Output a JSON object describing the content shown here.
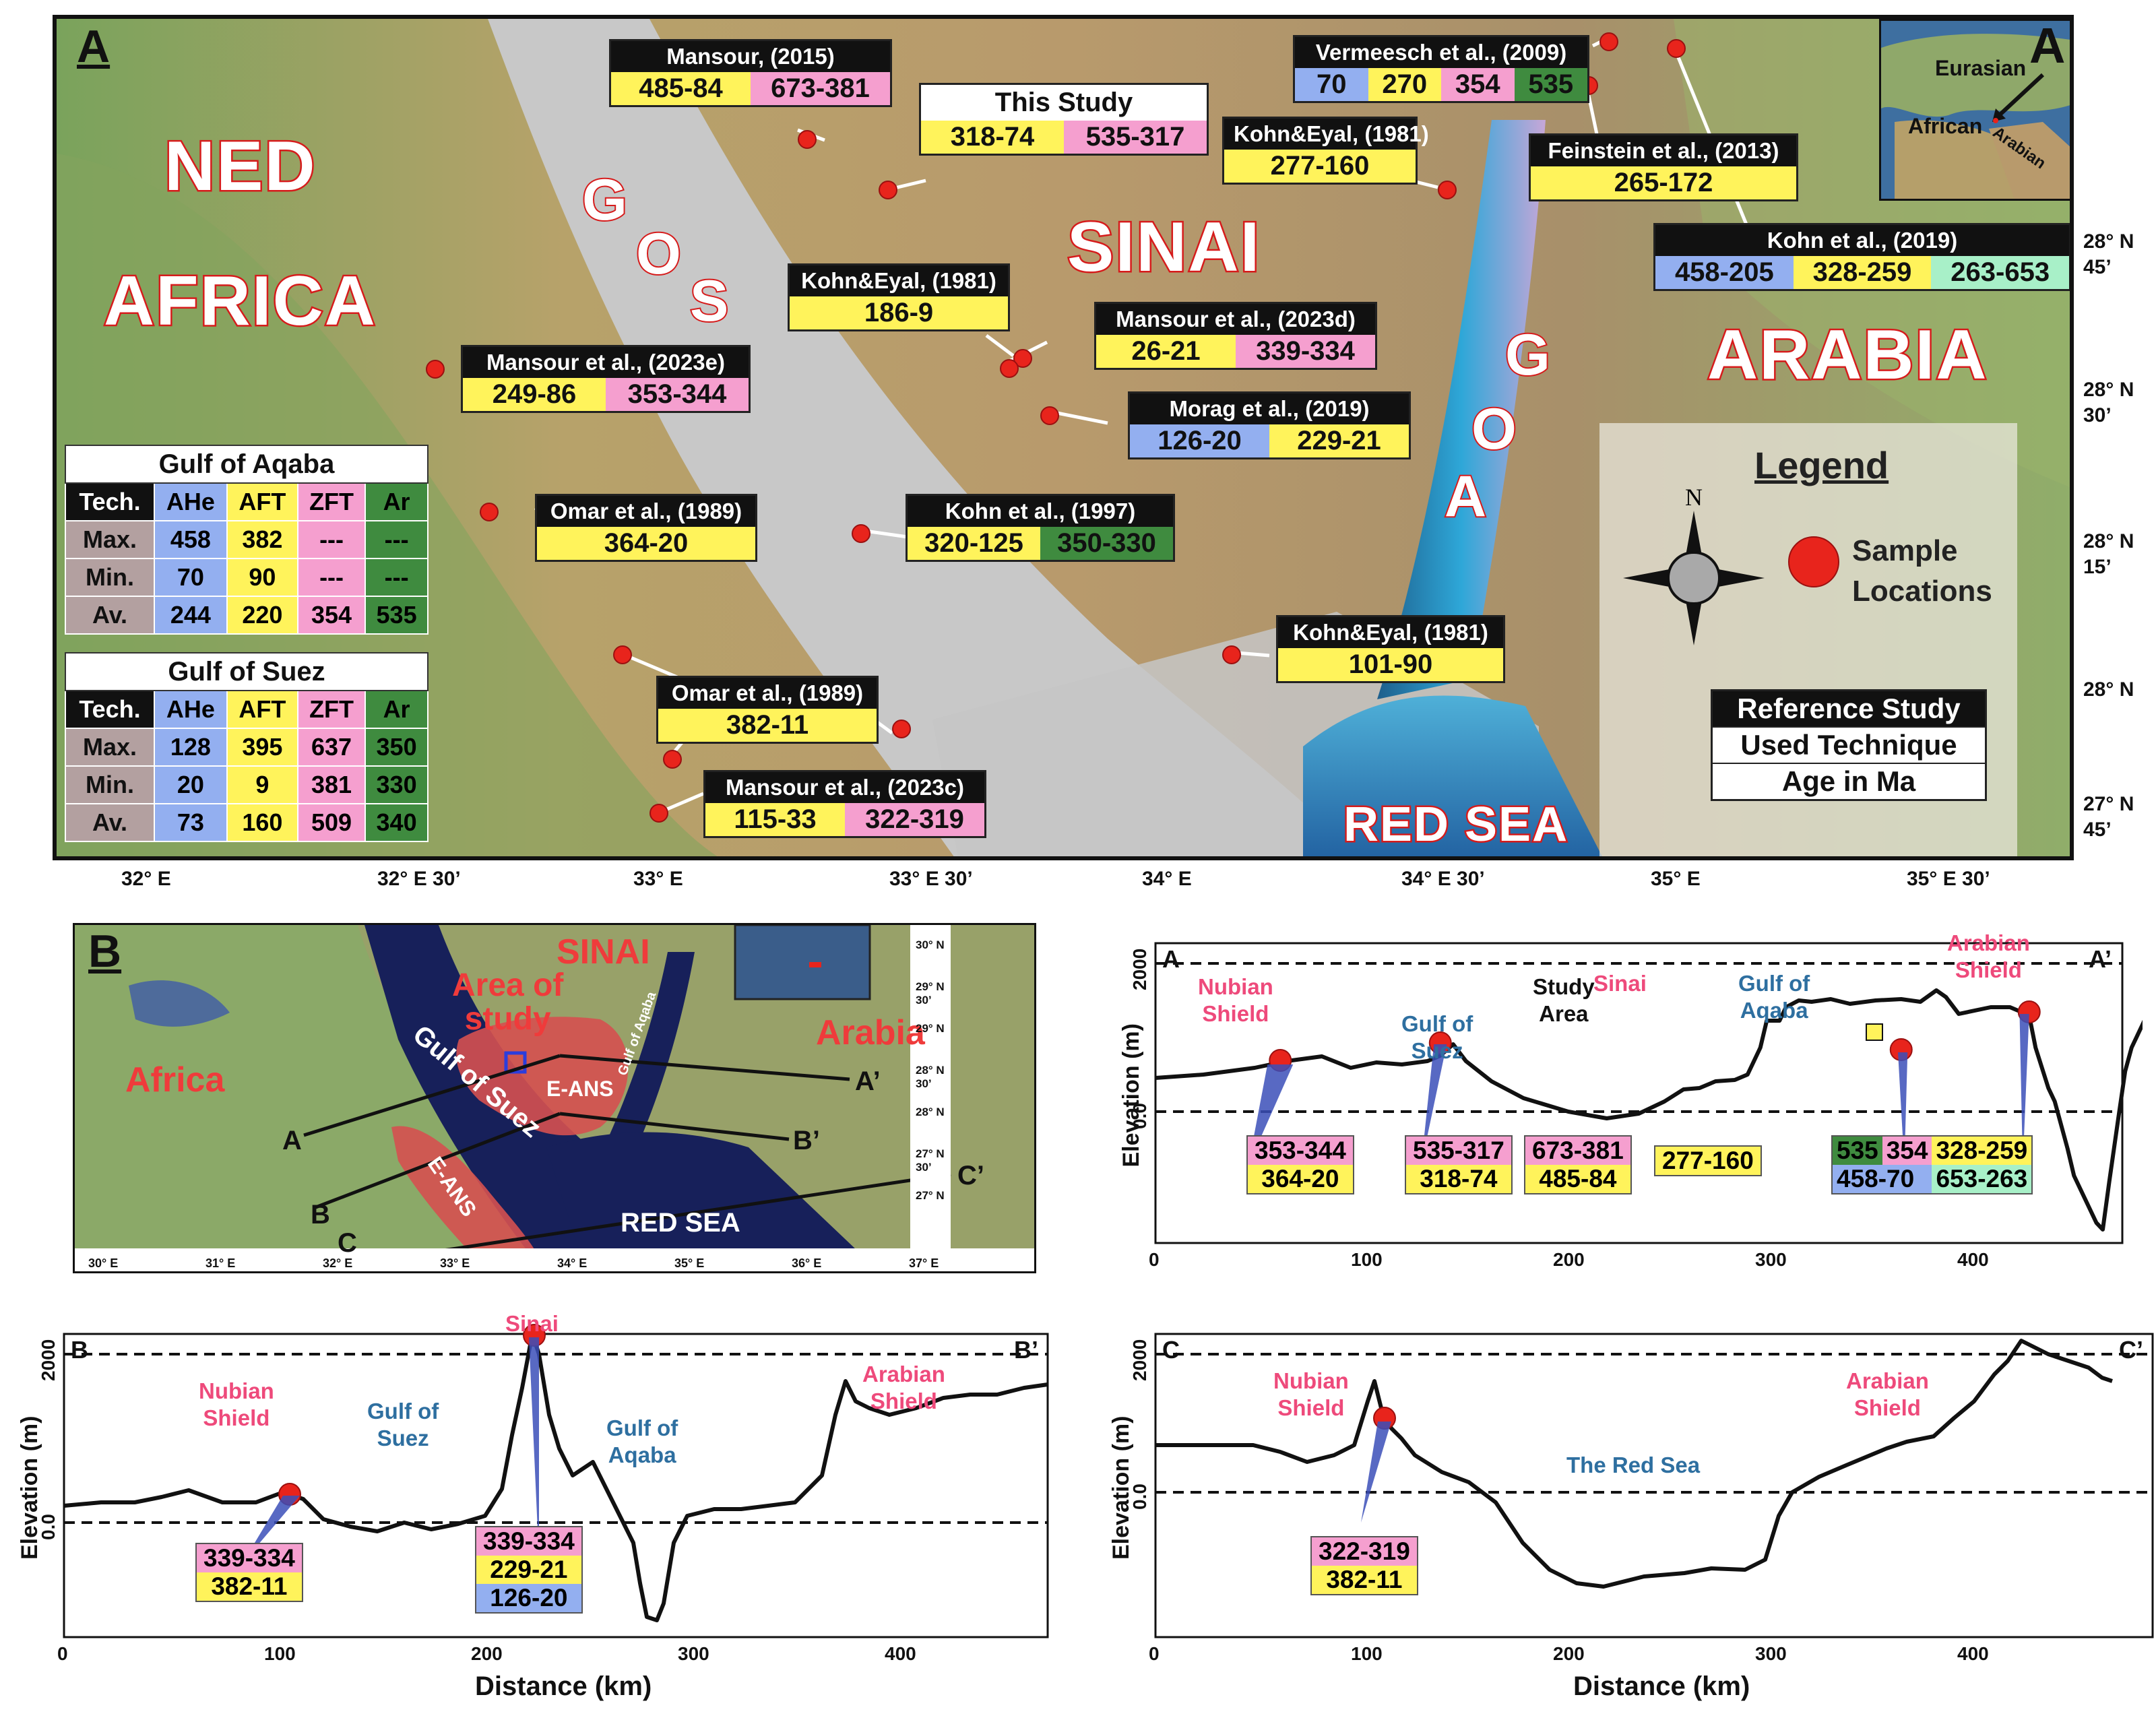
{
  "panel_a": {
    "letter": "A",
    "regions": {
      "ned": "NED",
      "africa": "AFRICA",
      "sinai": "SINAI",
      "arabia": "ARABIA",
      "red_sea": "RED SEA"
    },
    "gos_letters": [
      "G",
      "O",
      "S"
    ],
    "goa_letters": [
      "G",
      "O",
      "A"
    ],
    "references": [
      {
        "name": "Mansour, (2015)",
        "ages": [
          "485-84",
          "673-381"
        ],
        "colors": [
          "y",
          "p"
        ]
      },
      {
        "name": "This Study",
        "ages": [
          "318-74",
          "535-317"
        ],
        "colors": [
          "y",
          "p"
        ]
      },
      {
        "name": "Vermeesch et al., (2009)",
        "ages": [
          "70",
          "270",
          "354",
          "535"
        ],
        "colors": [
          "b",
          "y",
          "p",
          "g"
        ]
      },
      {
        "name": "Kohn&Eyal, (1981)",
        "ages": [
          "277-160"
        ],
        "colors": [
          "y"
        ]
      },
      {
        "name": "Feinstein et al., (2013)",
        "ages": [
          "265-172"
        ],
        "colors": [
          "y"
        ]
      },
      {
        "name": "Kohn et al., (2019)",
        "ages": [
          "458-205",
          "328-259",
          "263-653"
        ],
        "colors": [
          "b",
          "y",
          "t"
        ]
      },
      {
        "name": "Kohn&Eyal, (1981)",
        "ages": [
          "186-9"
        ],
        "colors": [
          "y"
        ]
      },
      {
        "name": "Mansour et al., (2023d)",
        "ages": [
          "26-21",
          "339-334"
        ],
        "colors": [
          "y",
          "p"
        ]
      },
      {
        "name": "Mansour et al., (2023e)",
        "ages": [
          "249-86",
          "353-344"
        ],
        "colors": [
          "y",
          "p"
        ]
      },
      {
        "name": "Morag et al., (2019)",
        "ages": [
          "126-20",
          "229-21"
        ],
        "colors": [
          "b",
          "y"
        ]
      },
      {
        "name": "Omar et al., (1989)",
        "ages": [
          "364-20"
        ],
        "colors": [
          "y"
        ]
      },
      {
        "name": "Kohn et al., (1997)",
        "ages": [
          "320-125",
          "350-330"
        ],
        "colors": [
          "y",
          "g"
        ]
      },
      {
        "name": "Kohn&Eyal, (1981)",
        "ages": [
          "101-90"
        ],
        "colors": [
          "y"
        ]
      },
      {
        "name": "Omar et al., (1989)",
        "ages": [
          "382-11"
        ],
        "colors": [
          "y"
        ]
      },
      {
        "name": "Mansour et al., (2023c)",
        "ages": [
          "115-33",
          "322-319"
        ],
        "colors": [
          "y",
          "p"
        ]
      }
    ],
    "inset": {
      "eurasian": "Eurasian",
      "african": "African",
      "arabian": "Arabian",
      "letter": "A"
    },
    "lat_ticks": [
      [
        "28° N",
        "45’"
      ],
      [
        "28° N",
        "30’"
      ],
      [
        "28° N",
        "15’"
      ],
      [
        "28° N",
        ""
      ],
      [
        "27° N",
        "45’"
      ]
    ],
    "lon_ticks": [
      "32° E",
      "32° E 30’",
      "33° E",
      "33° E 30’",
      "34° E",
      "34° E 30’",
      "35° E",
      "35° E 30’"
    ],
    "legend": {
      "title": "Legend",
      "north": "N",
      "sample_label": [
        "Sample",
        "Locations"
      ],
      "rows": [
        "Reference Study",
        "Used Technique",
        "Age in Ma"
      ]
    },
    "tables": [
      {
        "title": "Gulf of Aqaba",
        "header": [
          "Tech.",
          "AHe",
          "AFT",
          "ZFT",
          "Ar"
        ],
        "rows": [
          [
            "Max.",
            "458",
            "382",
            "---",
            "---"
          ],
          [
            "Min.",
            "70",
            "90",
            "---",
            "---"
          ],
          [
            "Av.",
            "244",
            "220",
            "354",
            "535"
          ]
        ]
      },
      {
        "title": "Gulf of Suez",
        "header": [
          "Tech.",
          "AHe",
          "AFT",
          "ZFT",
          "Ar"
        ],
        "rows": [
          [
            "Max.",
            "128",
            "395",
            "637",
            "350"
          ],
          [
            "Min.",
            "20",
            "9",
            "381",
            "330"
          ],
          [
            "Av.",
            "73",
            "160",
            "509",
            "340"
          ]
        ]
      }
    ]
  },
  "panel_b": {
    "letter": "B",
    "labels": {
      "sinai": "SINAI",
      "area": [
        "Area of",
        "study"
      ],
      "arabia": "Arabia",
      "africa": "Africa",
      "gos": "Gulf of Suez",
      "goa": "Gulf of Aqaba",
      "eans1": "E-ANS",
      "eans2": "E-ANS",
      "red_sea": "RED SEA"
    },
    "section_ends": [
      "A",
      "A’",
      "B",
      "B’",
      "C",
      "C’"
    ],
    "lon_ticks": [
      "30° E",
      "31° E",
      "32° E",
      "33° E",
      "34° E",
      "35° E",
      "36° E",
      "37° E"
    ],
    "lat_ticks": [
      [
        "30° N",
        ""
      ],
      [
        "29° N",
        "30’"
      ],
      [
        "29° N",
        ""
      ],
      [
        "28° N",
        "30’"
      ],
      [
        "28° N",
        ""
      ],
      [
        "27° N",
        "30’"
      ],
      [
        "27° N",
        ""
      ]
    ]
  },
  "profiles": {
    "y_label": "Elevation (m)",
    "x_label": "Distance (km)",
    "y_ticks": [
      "2000",
      "0.0"
    ],
    "x_ticks": [
      "0",
      "100",
      "200",
      "300",
      "400"
    ],
    "a": {
      "start": "A",
      "end": "A’",
      "labels": {
        "nubian": [
          "Nubian",
          "Shield"
        ],
        "gos": [
          "Gulf of",
          "Suez"
        ],
        "study": [
          "Study",
          "Area"
        ],
        "sinai": "Sinai",
        "goa": [
          "Gulf of",
          "Aqaba"
        ],
        "arabian": [
          "Arabian",
          "Shield"
        ]
      },
      "boxes": [
        [
          "353-344",
          "364-20"
        ],
        [
          "535-317",
          "318-74"
        ],
        [
          "673-381",
          "485-84"
        ],
        [
          "277-160"
        ],
        [
          "535",
          "354",
          "328-259",
          "458-70",
          "653-263"
        ]
      ]
    },
    "b": {
      "start": "B",
      "end": "B’",
      "labels": {
        "nubian": [
          "Nubian",
          "Shield"
        ],
        "gos": [
          "Gulf of",
          "Suez"
        ],
        "sinai": "Sinai",
        "goa": [
          "Gulf of",
          "Aqaba"
        ],
        "arabian": [
          "Arabian",
          "Shield"
        ]
      },
      "boxes": [
        [
          "339-334",
          "382-11"
        ],
        [
          "339-334",
          "229-21",
          "126-20"
        ]
      ]
    },
    "c": {
      "start": "C",
      "end": "C’",
      "labels": {
        "nubian": [
          "Nubian",
          "Shield"
        ],
        "red": "The Red Sea",
        "arabian": [
          "Arabian",
          "Shield"
        ]
      },
      "boxes": [
        [
          "322-319",
          "382-11"
        ]
      ]
    }
  },
  "colors": {
    "yellow": "#fff35b",
    "pink": "#f59fcf",
    "blue": "#93aff0",
    "green": "#3f8b3f",
    "teal": "#a8f0c8",
    "red": "#e8241c"
  }
}
